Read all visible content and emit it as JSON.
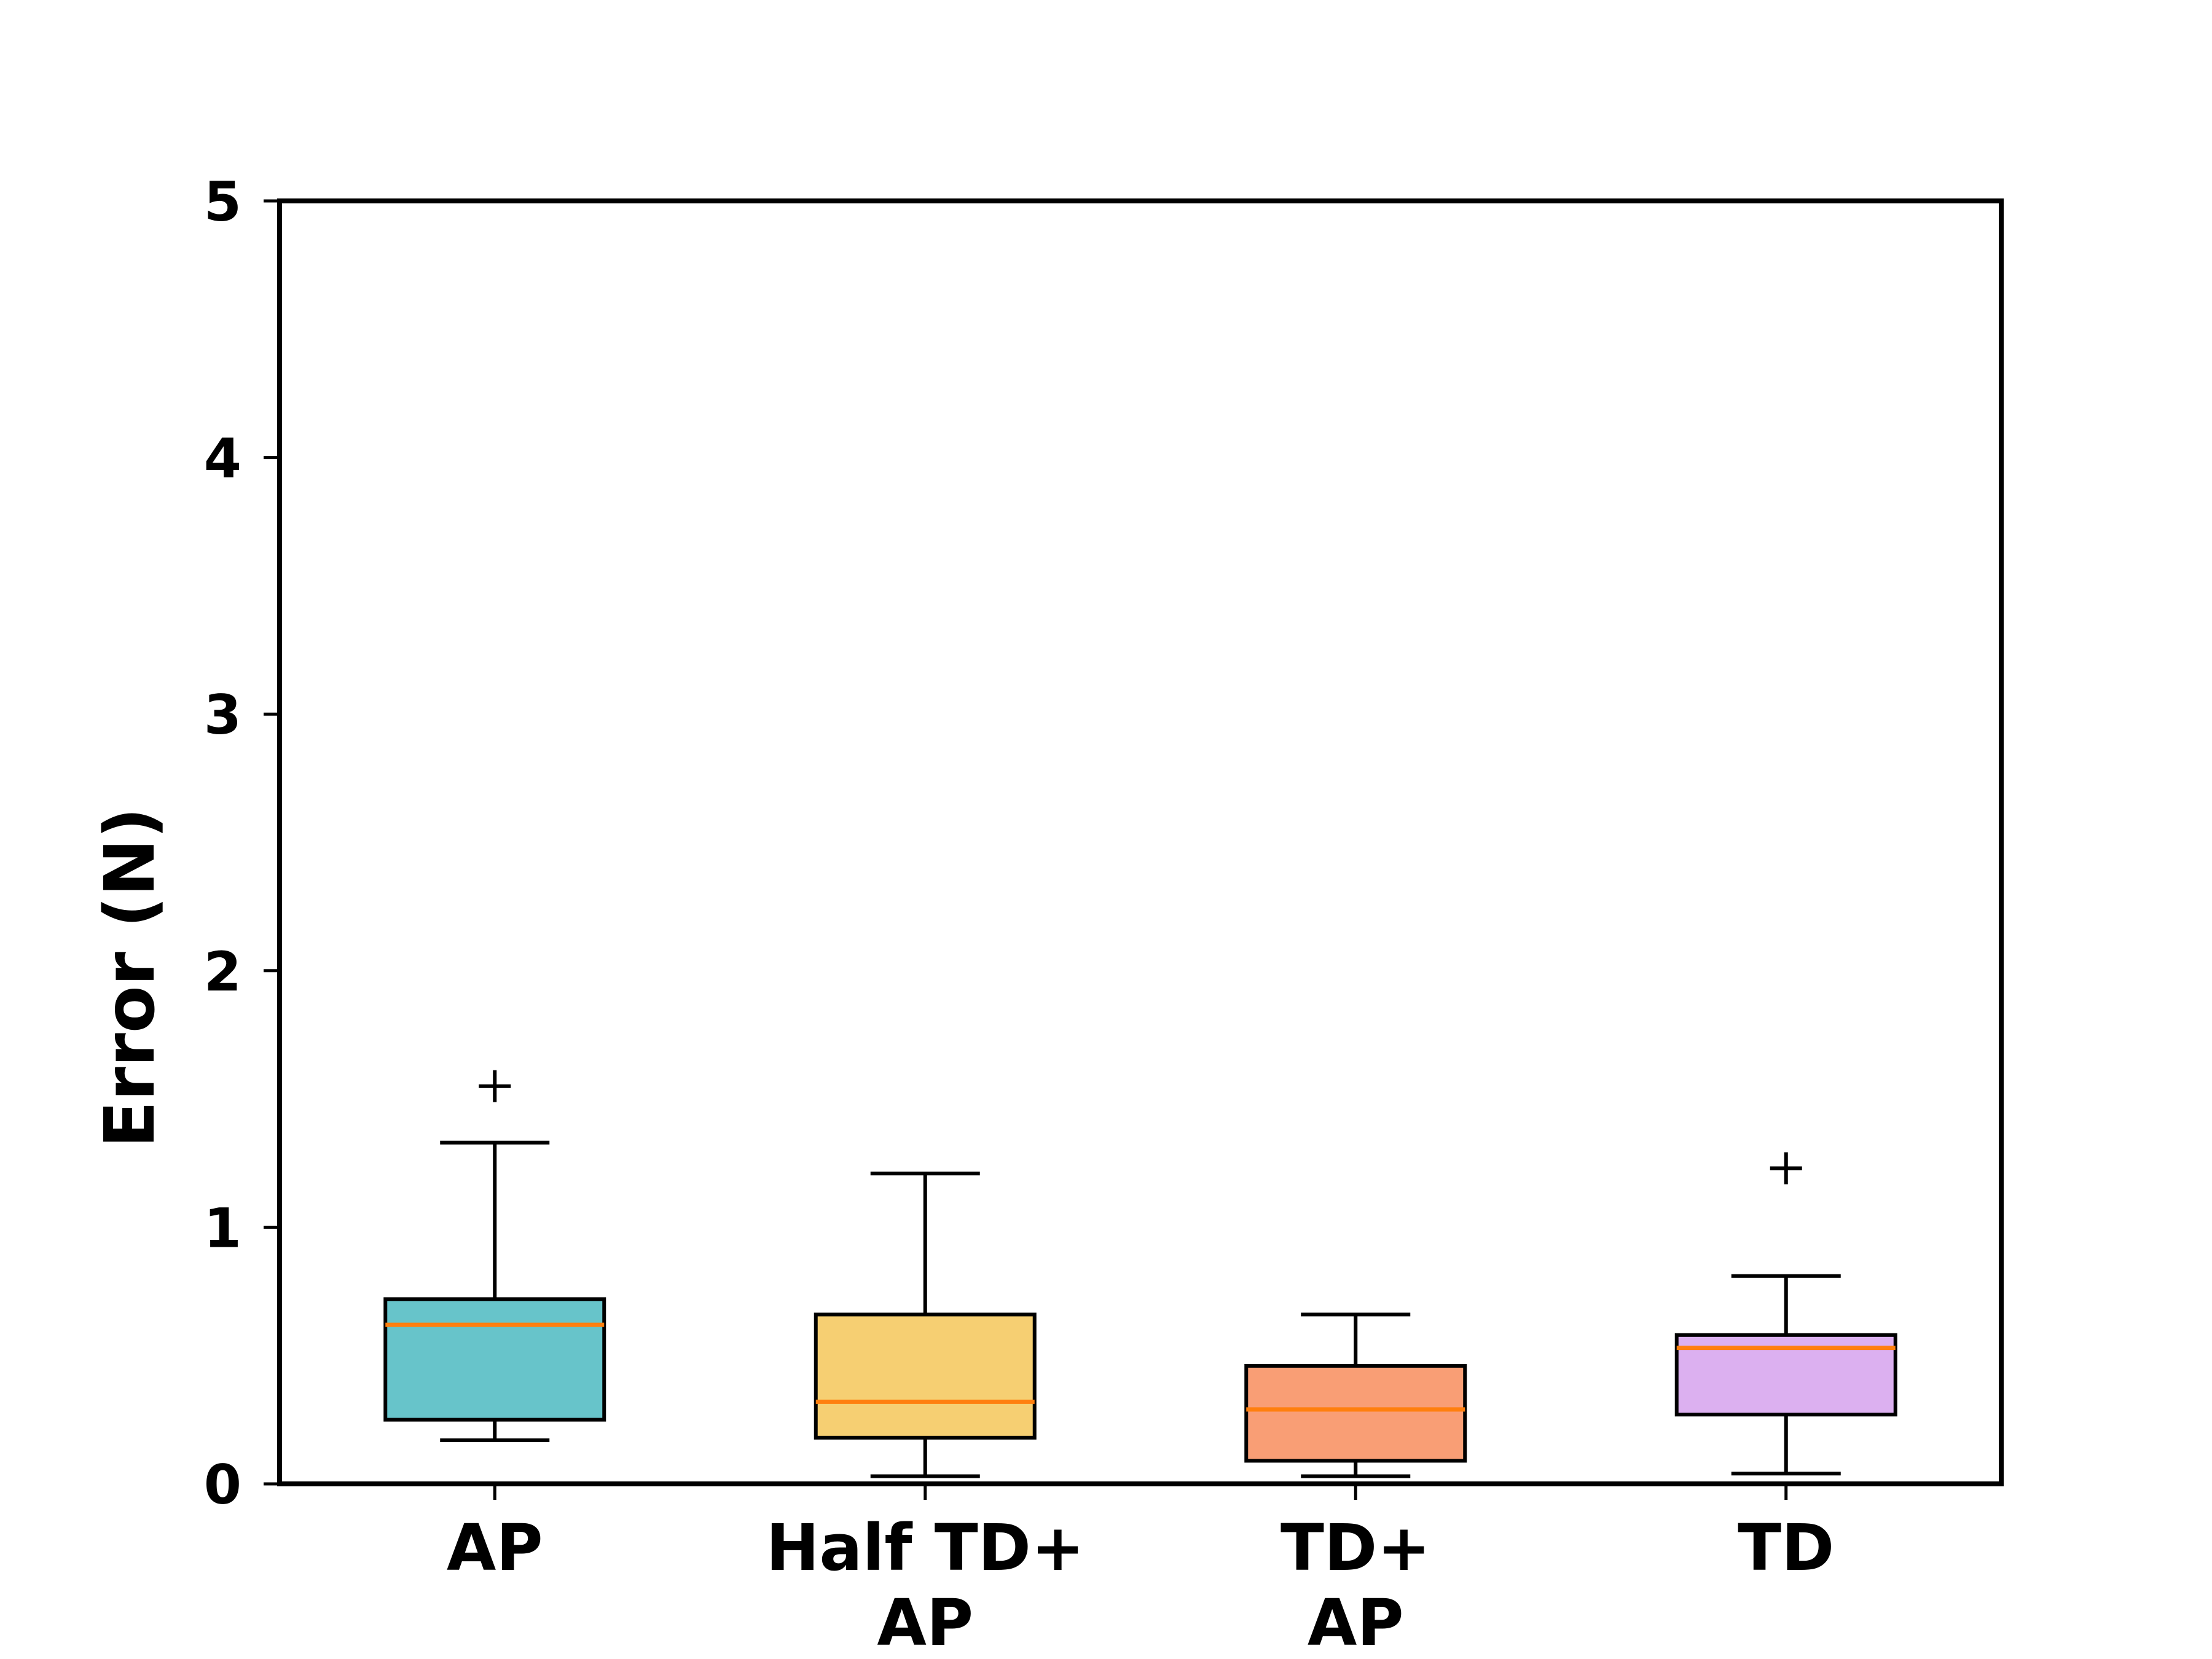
{
  "chart_data": {
    "type": "box",
    "title": "",
    "xlabel": "",
    "ylabel": "Error (N)",
    "ylim": [
      0,
      5
    ],
    "yticks": [
      0,
      1,
      2,
      3,
      4,
      5
    ],
    "categories": [
      [
        "AP"
      ],
      [
        "Half TD+",
        "AP"
      ],
      [
        "TD+",
        "AP"
      ],
      [
        "TD"
      ]
    ],
    "boxes": [
      {
        "name": "AP",
        "whisker_low": 0.17,
        "q1": 0.25,
        "median": 0.62,
        "q3": 0.72,
        "whisker_high": 1.33,
        "fliers": [
          1.55
        ],
        "color": "#67c4ca"
      },
      {
        "name": "Half TD+ AP",
        "whisker_low": 0.03,
        "q1": 0.18,
        "median": 0.32,
        "q3": 0.66,
        "whisker_high": 1.21,
        "fliers": [],
        "color": "#f6cf72"
      },
      {
        "name": "TD+ AP",
        "whisker_low": 0.03,
        "q1": 0.09,
        "median": 0.29,
        "q3": 0.46,
        "whisker_high": 0.66,
        "fliers": [],
        "color": "#f99e75"
      },
      {
        "name": "TD",
        "whisker_low": 0.04,
        "q1": 0.27,
        "median": 0.53,
        "q3": 0.58,
        "whisker_high": 0.81,
        "fliers": [
          1.23
        ],
        "color": "#dcb0f0"
      }
    ],
    "median_color": "#ff7f0e",
    "grid": false,
    "legend": "none"
  }
}
